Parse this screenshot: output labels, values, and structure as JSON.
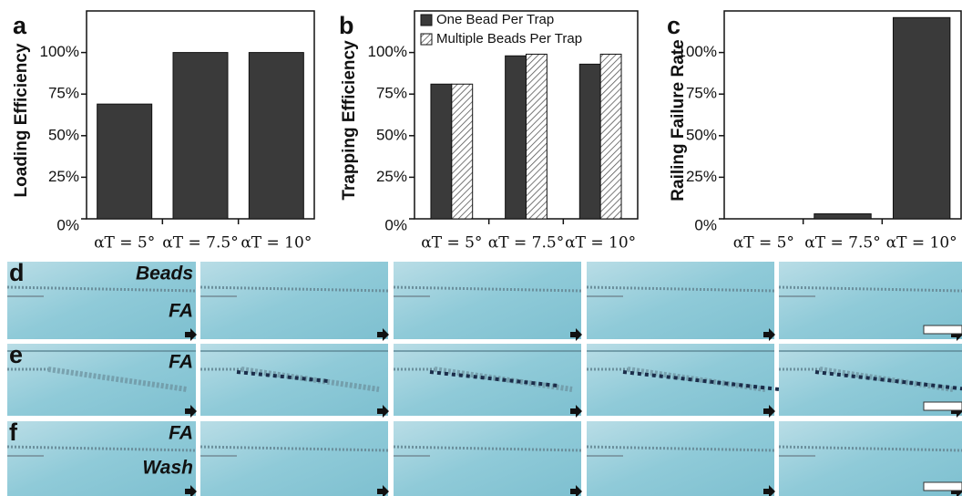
{
  "chart_data": [
    {
      "type": "bar",
      "panel_label": "a",
      "ylabel": "Loading Efficiency",
      "categories": [
        "αT = 5°",
        "αT = 7.5°",
        "αT = 10°"
      ],
      "values": [
        69,
        100,
        100
      ],
      "color": "#3a3a3a",
      "ylim": [
        0,
        125
      ],
      "yticks": [
        {
          "value": 0,
          "label": "0%"
        },
        {
          "value": 25,
          "label": "25%"
        },
        {
          "value": 50,
          "label": "50%"
        },
        {
          "value": 75,
          "label": "75%"
        },
        {
          "value": 100,
          "label": "100%"
        }
      ]
    },
    {
      "type": "bar",
      "panel_label": "b",
      "ylabel": "Trapping  Efficiency",
      "categories": [
        "αT = 5°",
        "αT = 7.5°",
        "αT = 10°"
      ],
      "series": [
        {
          "name": "One Bead Per Trap",
          "color": "#3a3a3a",
          "hatch": false,
          "values": [
            81,
            98,
            93
          ]
        },
        {
          "name": "Multiple Beads Per Trap",
          "color": "#555555",
          "hatch": true,
          "values": [
            81,
            99,
            99
          ]
        }
      ],
      "legend": "upper left",
      "ylim": [
        0,
        125
      ],
      "yticks": [
        {
          "value": 0,
          "label": "0%"
        },
        {
          "value": 25,
          "label": "25%"
        },
        {
          "value": 50,
          "label": "50%"
        },
        {
          "value": 75,
          "label": "75%"
        },
        {
          "value": 100,
          "label": "100%"
        }
      ]
    },
    {
      "type": "bar",
      "panel_label": "c",
      "ylabel": "Railing Failure Rate",
      "categories": [
        "αT = 5°",
        "αT = 7.5°",
        "αT = 10°"
      ],
      "values": [
        0,
        3,
        121
      ],
      "color": "#3a3a3a",
      "ylim": [
        0,
        125
      ],
      "yticks": [
        {
          "value": 0,
          "label": "0%"
        },
        {
          "value": 25,
          "label": "25%"
        },
        {
          "value": 50,
          "label": "50%"
        },
        {
          "value": 75,
          "label": "75%"
        },
        {
          "value": 100,
          "label": "100%"
        }
      ]
    }
  ],
  "panels": [
    {
      "label": "d",
      "texts": [
        "Beads",
        "FA"
      ]
    },
    {
      "label": "e",
      "texts": [
        "FA"
      ]
    },
    {
      "label": "f",
      "texts": [
        "FA",
        "Wash"
      ]
    }
  ]
}
